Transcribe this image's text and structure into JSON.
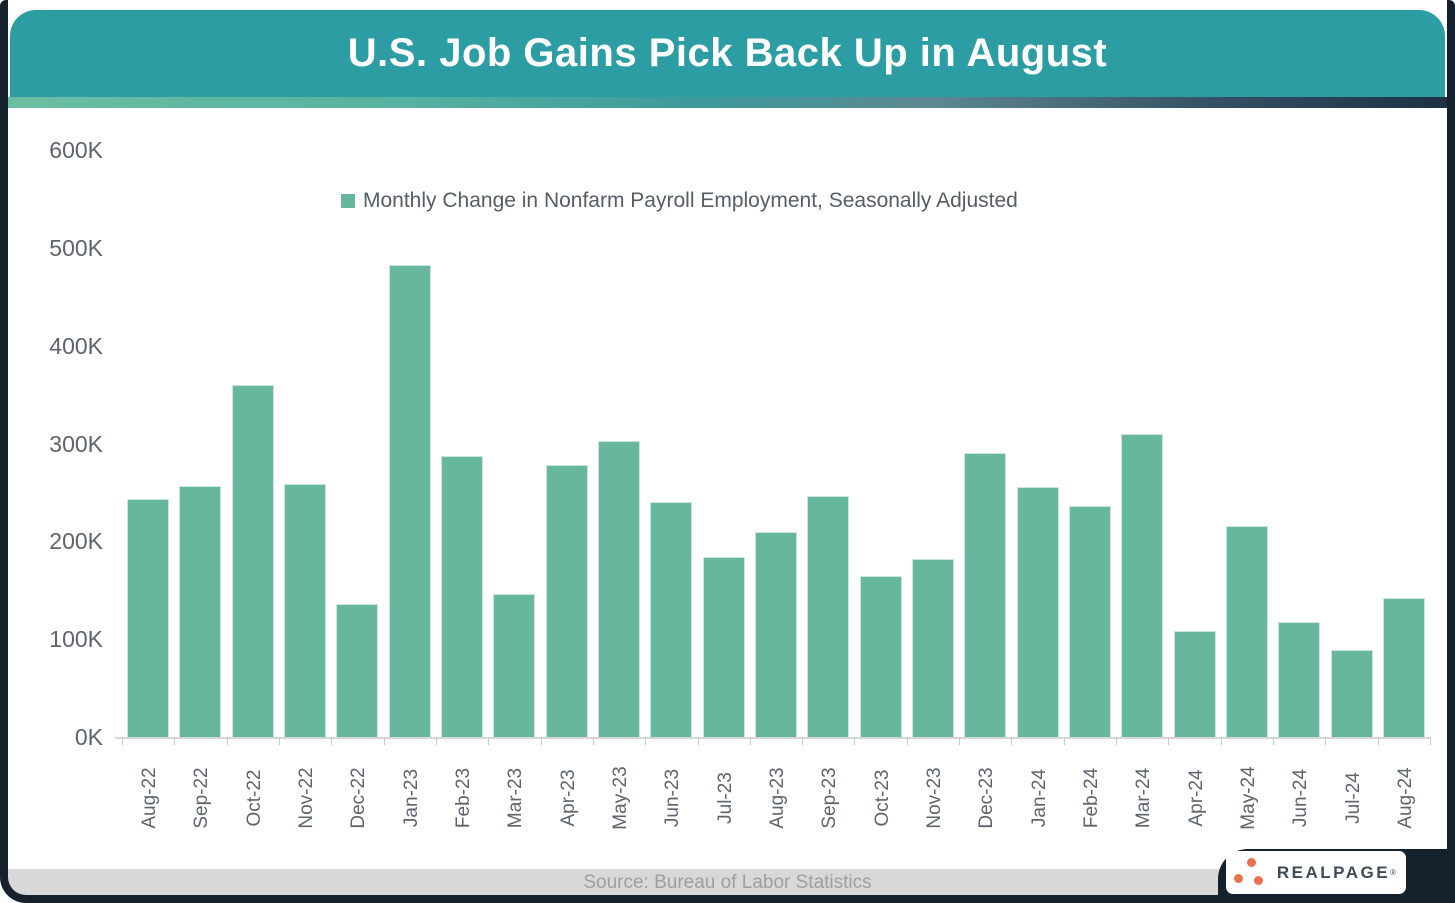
{
  "header": {
    "title": "U.S. Job Gains Pick Back Up in August"
  },
  "legend": {
    "label": "Monthly Change in Nonfarm Payroll Employment, Seasonally Adjusted"
  },
  "footer": {
    "source": "Source: Bureau of Labor Statistics"
  },
  "logo": {
    "text": "REALPAGE",
    "mark": "®"
  },
  "colors": {
    "header_teal": "#2B9DA3",
    "bar_green": "#67B79E",
    "frame_dark": "#16212E",
    "footer_gray": "#D8D8D8",
    "logo_orange": "#E9724C"
  },
  "chart_data": {
    "type": "bar",
    "title": "U.S. Job Gains Pick Back Up in August",
    "series_name": "Monthly Change in Nonfarm Payroll Employment, Seasonally Adjusted",
    "categories": [
      "Aug-22",
      "Sep-22",
      "Oct-22",
      "Nov-22",
      "Dec-22",
      "Jan-23",
      "Feb-23",
      "Mar-23",
      "Apr-23",
      "May-23",
      "Jun-23",
      "Jul-23",
      "Aug-23",
      "Sep-23",
      "Oct-23",
      "Nov-23",
      "Dec-23",
      "Jan-24",
      "Feb-24",
      "Mar-24",
      "Apr-24",
      "May-24",
      "Jun-24",
      "Jul-24",
      "Aug-24"
    ],
    "values": [
      243,
      257,
      360,
      259,
      136,
      482,
      287,
      146,
      278,
      303,
      240,
      184,
      210,
      246,
      165,
      182,
      290,
      256,
      236,
      310,
      108,
      216,
      118,
      89,
      142
    ],
    "unit": "thousands of jobs",
    "ylim": [
      0,
      600
    ],
    "ytick_labels": [
      "0K",
      "100K",
      "200K",
      "300K",
      "400K",
      "500K",
      "600K"
    ],
    "grid": false,
    "legend_position": "top-center",
    "source": "Source: Bureau of Labor Statistics"
  }
}
